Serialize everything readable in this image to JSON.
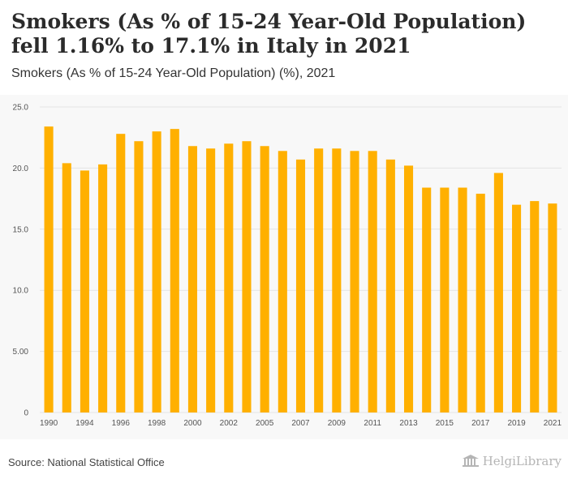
{
  "header": {
    "title": "Smokers (As % of 15-24 Year-Old Population) fell 1.16% to 17.1% in Italy in 2021",
    "subtitle": "Smokers (As % of 15-24 Year-Old Population) (%), 2021"
  },
  "footer": {
    "source": "Source: National Statistical Office",
    "logo_text": "HelgiLibrary"
  },
  "colors": {
    "bar": "#FFB000",
    "grid": "#e3e3e3",
    "plot_background": "#f8f8f8"
  },
  "chart_data": {
    "type": "bar",
    "categories": [
      "1990",
      "1993",
      "1994",
      "1995",
      "1996",
      "1997",
      "1998",
      "1999",
      "2000",
      "2001",
      "2002",
      "2003",
      "2005",
      "2006",
      "2007",
      "2008",
      "2009",
      "2010",
      "2011",
      "2012",
      "2013",
      "2014",
      "2015",
      "2016",
      "2017",
      "2018",
      "2019",
      "2020",
      "2021"
    ],
    "x_tick_labels": [
      "1990",
      "1994",
      "1996",
      "1998",
      "2000",
      "2002",
      "2005",
      "2007",
      "2009",
      "2011",
      "2013",
      "2015",
      "2017",
      "2019",
      "2021"
    ],
    "values": [
      23.4,
      20.4,
      19.8,
      20.3,
      22.8,
      22.2,
      23.0,
      23.2,
      21.8,
      21.6,
      22.0,
      22.2,
      21.8,
      21.4,
      20.7,
      21.6,
      21.6,
      21.4,
      21.4,
      20.7,
      20.2,
      18.4,
      18.4,
      18.4,
      17.9,
      19.6,
      17.0,
      17.3,
      17.1
    ],
    "y_ticks": [
      "0",
      "5.00",
      "10.0",
      "15.0",
      "20.0",
      "25.0"
    ],
    "ylim": [
      0,
      25
    ],
    "grid": true,
    "xlabel": "",
    "ylabel": ""
  }
}
